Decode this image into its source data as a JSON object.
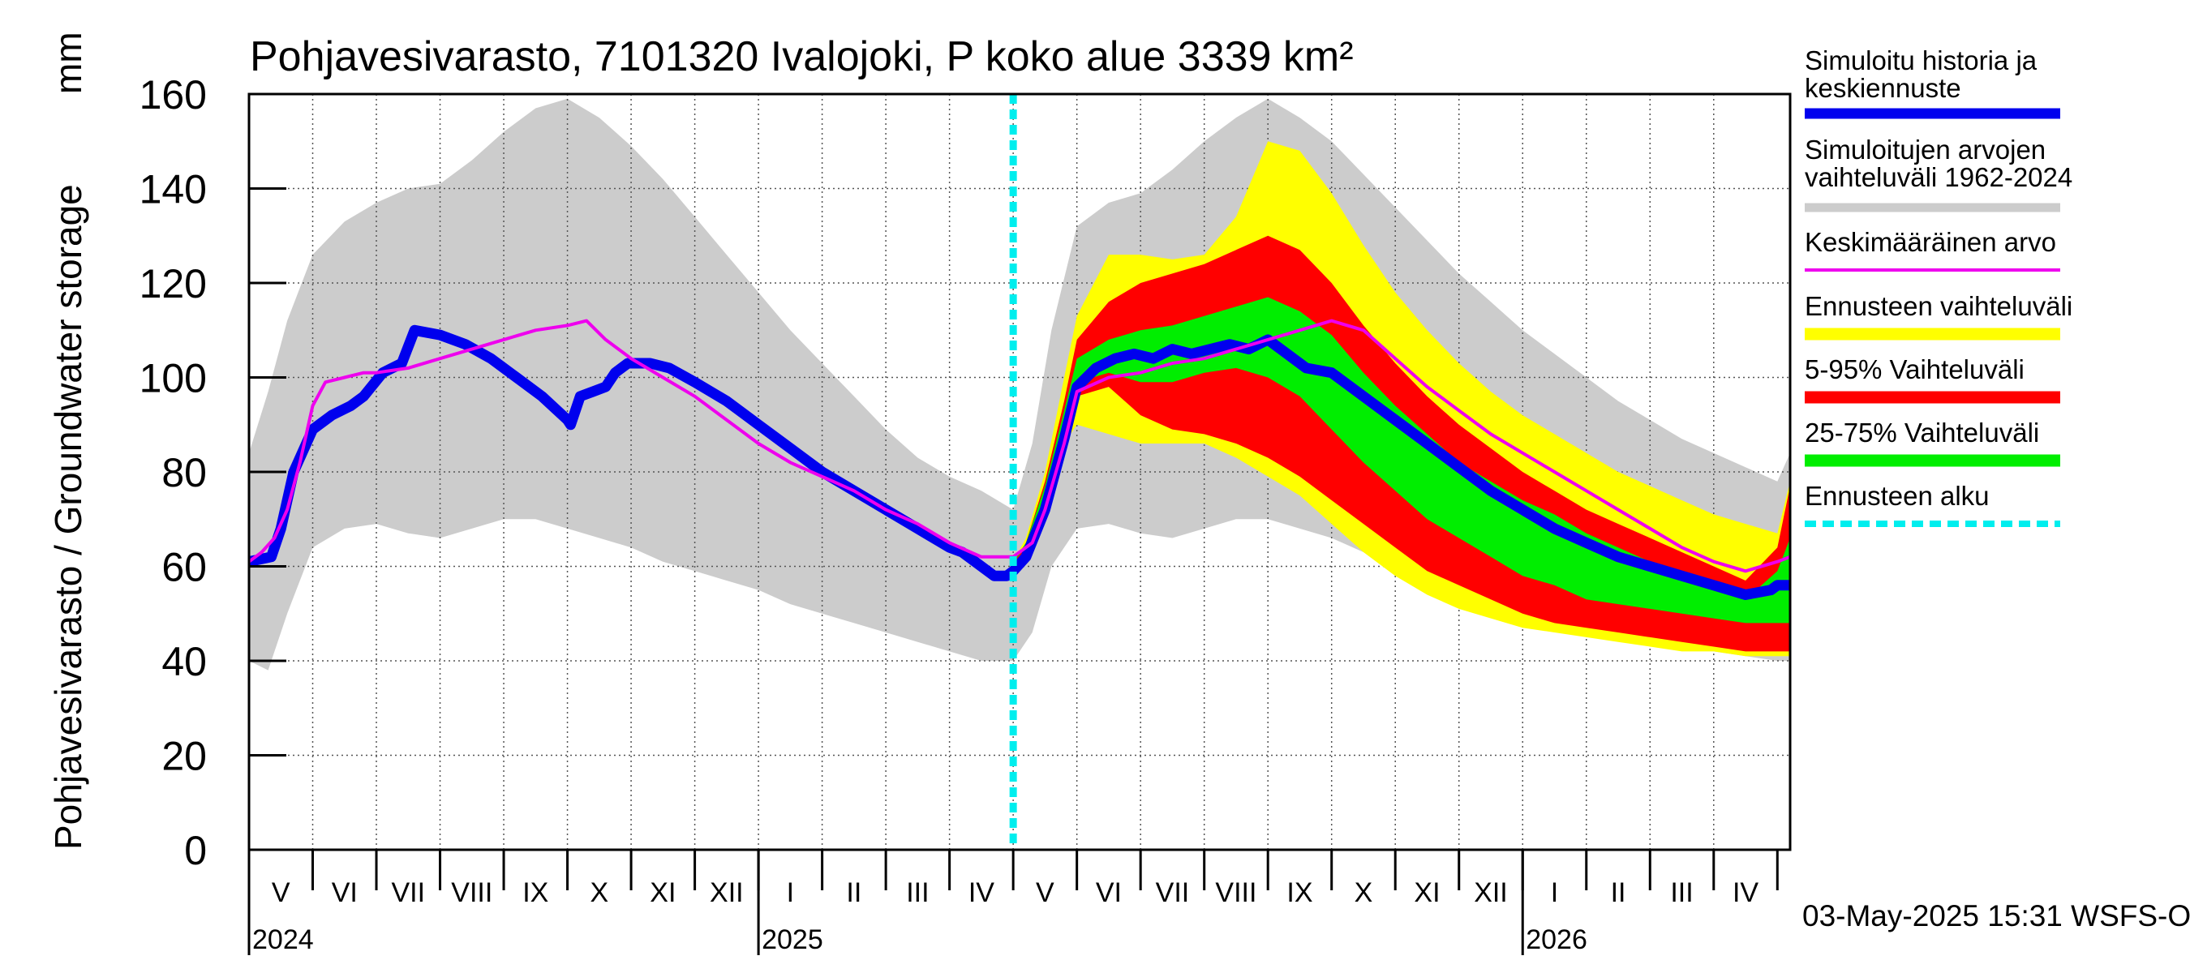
{
  "chart_data": {
    "type": "area",
    "title": "Pohjavesivarasto, 7101320 Ivalojoki, P koko alue 3339 km²",
    "ylabel": "Pohjavesivarasto / Groundwater storage",
    "yunit": "mm",
    "ylim": [
      0,
      160
    ],
    "yticks": [
      0,
      20,
      40,
      60,
      80,
      100,
      120,
      140,
      160
    ],
    "xlim": [
      0,
      24.2
    ],
    "x_unit": "months since 1 May 2024",
    "forecast_start_x": 12.0,
    "months": [
      "V",
      "VI",
      "VII",
      "VIII",
      "IX",
      "X",
      "XI",
      "XII",
      "I",
      "II",
      "III",
      "IV",
      "V",
      "VI",
      "VII",
      "VIII",
      "IX",
      "X",
      "XI",
      "XII",
      "I",
      "II",
      "III",
      "IV"
    ],
    "years": [
      {
        "label": "2024",
        "x": 0
      },
      {
        "label": "2025",
        "x": 8
      },
      {
        "label": "2026",
        "x": 20
      }
    ],
    "timestamp": "03-May-2025 15:31 WSFS-O",
    "legend": [
      {
        "label": "Simuloitu historia ja keskiennuste",
        "color": "#0000ee"
      },
      {
        "label": "Simuloitujen arvojen vaihteluväli 1962-2024",
        "color": "#cccccc"
      },
      {
        "label": "Keskimääräinen arvo",
        "color": "#ee00ee"
      },
      {
        "label": "Ennusteen vaihteluväli",
        "color": "#ffff00"
      },
      {
        "label": "5-95% Vaihteluväli",
        "color": "#ff0000"
      },
      {
        "label": "25-75% Vaihteluväli",
        "color": "#00ee00"
      },
      {
        "label": "Ennusteen alku",
        "color": "#00eeee"
      }
    ],
    "series": {
      "sim_range": {
        "x": [
          0,
          0.3,
          0.6,
          1,
          1.5,
          2,
          2.5,
          3,
          3.5,
          4,
          4.5,
          5,
          5.5,
          6,
          6.5,
          7,
          7.5,
          8,
          8.5,
          9,
          9.5,
          10,
          10.5,
          11,
          11.5,
          12,
          12.3,
          12.6,
          13,
          13.5,
          14,
          14.5,
          15,
          15.5,
          16,
          16.5,
          17,
          17.5,
          18,
          18.5,
          19,
          19.5,
          20,
          20.5,
          21,
          21.5,
          22,
          22.5,
          23,
          23.5,
          24,
          24.2
        ],
        "upper": [
          84,
          97,
          112,
          126,
          133,
          137,
          140,
          141,
          146,
          152,
          157,
          159,
          155,
          149,
          142,
          134,
          126,
          118,
          110,
          103,
          96,
          89,
          83,
          79,
          76,
          72,
          86,
          110,
          132,
          137,
          139,
          144,
          150,
          155,
          159,
          155,
          150,
          143,
          136,
          129,
          122,
          116,
          110,
          105,
          100,
          95,
          91,
          87,
          84,
          81,
          78,
          84
        ],
        "lower": [
          40,
          38,
          50,
          64,
          68,
          69,
          67,
          66,
          68,
          70,
          70,
          68,
          66,
          64,
          61,
          59,
          57,
          55,
          52,
          50,
          48,
          46,
          44,
          42,
          40,
          40,
          46,
          60,
          68,
          69,
          67,
          66,
          68,
          70,
          70,
          68,
          66,
          63,
          60,
          57,
          54,
          52,
          50,
          48,
          46,
          45,
          44,
          43,
          42,
          41,
          40,
          40
        ]
      },
      "forecast_yellow": {
        "x": [
          12,
          12.2,
          12.5,
          12.8,
          13,
          13.5,
          14,
          14.5,
          15,
          15.5,
          16,
          16.5,
          17,
          17.5,
          18,
          18.5,
          19,
          19.5,
          20,
          20.5,
          21,
          21.5,
          22,
          22.5,
          23,
          23.5,
          24,
          24.2
        ],
        "upper": [
          61,
          66,
          80,
          100,
          113,
          126,
          126,
          125,
          126,
          134,
          150,
          148,
          139,
          128,
          118,
          110,
          103,
          97,
          92,
          88,
          84,
          80,
          77,
          74,
          71,
          69,
          67,
          78
        ],
        "lower": [
          61,
          62,
          72,
          86,
          90,
          88,
          86,
          86,
          86,
          83,
          79,
          75,
          69,
          63,
          58,
          54,
          51,
          49,
          47,
          46,
          45,
          44,
          43,
          42,
          42,
          41,
          41,
          41
        ]
      },
      "forecast_red": {
        "x": [
          12,
          12.2,
          12.5,
          12.8,
          13,
          13.5,
          14,
          14.5,
          15,
          15.5,
          16,
          16.5,
          17,
          17.5,
          18,
          18.5,
          19,
          19.5,
          20,
          20.5,
          21,
          21.5,
          22,
          22.5,
          23,
          23.5,
          24,
          24.2
        ],
        "upper": [
          61,
          65,
          78,
          95,
          108,
          116,
          120,
          122,
          124,
          127,
          130,
          127,
          120,
          111,
          103,
          96,
          90,
          85,
          80,
          76,
          72,
          69,
          66,
          63,
          60,
          57,
          64,
          77
        ],
        "lower": [
          61,
          63,
          74,
          88,
          96,
          98,
          92,
          89,
          88,
          86,
          83,
          79,
          74,
          69,
          64,
          59,
          56,
          53,
          50,
          48,
          47,
          46,
          45,
          44,
          43,
          42,
          42,
          42
        ]
      },
      "forecast_green": {
        "x": [
          12,
          12.2,
          12.5,
          12.8,
          13,
          13.5,
          14,
          14.5,
          15,
          15.5,
          16,
          16.5,
          17,
          17.5,
          18,
          18.5,
          19,
          19.5,
          20,
          20.5,
          21,
          21.5,
          22,
          22.5,
          23,
          23.5,
          24,
          24.2
        ],
        "upper": [
          61,
          65,
          77,
          93,
          104,
          108,
          110,
          111,
          113,
          115,
          117,
          114,
          109,
          101,
          94,
          88,
          82,
          78,
          74,
          71,
          67,
          64,
          61,
          58,
          55,
          53,
          59,
          66
        ],
        "lower": [
          61,
          64,
          75,
          90,
          99,
          101,
          99,
          99,
          101,
          102,
          100,
          96,
          89,
          82,
          76,
          70,
          66,
          62,
          58,
          56,
          53,
          52,
          51,
          50,
          49,
          48,
          48,
          48
        ]
      },
      "simulated": {
        "x": [
          0,
          0.35,
          0.5,
          0.7,
          1,
          1.3,
          1.6,
          1.8,
          2.1,
          2.4,
          2.6,
          3,
          3.4,
          3.8,
          4.2,
          4.6,
          5,
          5.05,
          5.2,
          5.4,
          5.6,
          5.75,
          5.95,
          6.3,
          6.6,
          7,
          7.5,
          8,
          8.5,
          9,
          9.5,
          10,
          10.5,
          11,
          11.2,
          11.5,
          11.7,
          11.9,
          12,
          12.2,
          12.5,
          12.8,
          13,
          13.3,
          13.6,
          13.9,
          14.2,
          14.5,
          14.8,
          15.1,
          15.4,
          15.7,
          16,
          16.3,
          16.6,
          17,
          17.5,
          18,
          18.5,
          19,
          19.5,
          20,
          20.5,
          21,
          21.5,
          22,
          22.5,
          23,
          23.5,
          23.9,
          24,
          24.2
        ],
        "values": [
          61,
          62,
          68,
          80,
          89,
          92,
          94,
          96,
          101,
          103,
          110,
          109,
          107,
          104,
          100,
          96,
          91,
          90,
          96,
          97,
          98,
          101,
          103,
          103,
          102,
          99,
          95,
          90,
          85,
          80,
          76,
          72,
          68,
          64,
          63,
          60,
          58,
          58,
          59,
          62,
          72,
          87,
          98,
          102,
          104,
          105,
          104,
          106,
          105,
          106,
          107,
          106,
          108,
          105,
          102,
          101,
          96,
          91,
          86,
          81,
          76,
          72,
          68,
          65,
          62,
          60,
          58,
          56,
          54,
          55,
          56,
          56
        ]
      },
      "mean": {
        "x": [
          0,
          0.2,
          0.4,
          0.6,
          0.8,
          1,
          1.2,
          1.5,
          1.8,
          2,
          2.5,
          3,
          3.5,
          4,
          4.5,
          5,
          5.3,
          5.6,
          6,
          6.5,
          7,
          7.5,
          8,
          8.5,
          9,
          9.5,
          10,
          10.5,
          11,
          11.5,
          12,
          12.3,
          12.5,
          12.8,
          13,
          13.5,
          14,
          14.5,
          15,
          15.5,
          16,
          16.5,
          17,
          17.5,
          18,
          18.5,
          19,
          19.5,
          20,
          20.5,
          21,
          21.5,
          22,
          22.5,
          23,
          23.5,
          24,
          24.2
        ],
        "values": [
          61,
          63,
          66,
          72,
          82,
          94,
          99,
          100,
          101,
          101,
          102,
          104,
          106,
          108,
          110,
          111,
          112,
          108,
          104,
          100,
          96,
          91,
          86,
          82,
          79,
          76,
          72,
          69,
          65,
          62,
          62,
          65,
          72,
          86,
          97,
          100,
          101,
          103,
          104,
          106,
          108,
          110,
          112,
          110,
          104,
          98,
          93,
          88,
          84,
          80,
          76,
          72,
          68,
          64,
          61,
          59,
          61,
          62
        ]
      }
    }
  }
}
